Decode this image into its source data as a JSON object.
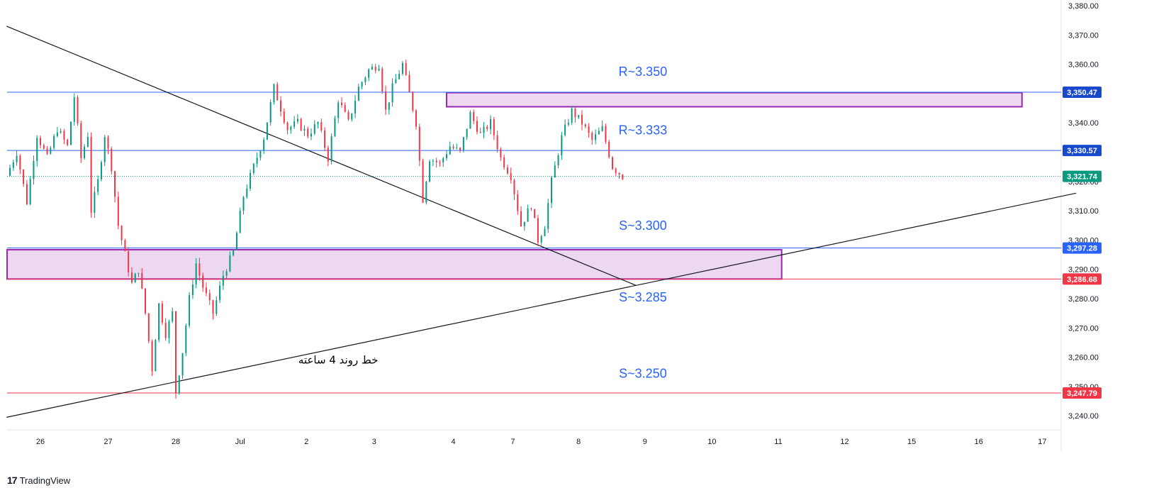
{
  "chart_data": {
    "type": "candlestick",
    "instrument_price_last": "3,321.74",
    "y_axis": {
      "ticks": [
        "3,380.00",
        "3,370.00",
        "3,360.00",
        "3,350.00",
        "3,340.00",
        "3,330.00",
        "3,320.00",
        "3,310.00",
        "3,300.00",
        "3,290.00",
        "3,280.00",
        "3,270.00",
        "3,260.00",
        "3,250.00",
        "3,240.00"
      ],
      "tick_values": [
        3380,
        3370,
        3360,
        3350,
        3340,
        3330,
        3320,
        3310,
        3300,
        3290,
        3280,
        3270,
        3260,
        3250,
        3240
      ],
      "range": [
        3236,
        3381
      ]
    },
    "x_axis": {
      "labels": [
        "26",
        "27",
        "28",
        "Jul",
        "2",
        "3",
        "4",
        "7",
        "8",
        "9",
        "10",
        "11",
        "12",
        "15",
        "16",
        "17"
      ],
      "label_day_index": [
        0,
        1,
        2,
        3,
        4,
        5,
        6,
        7,
        8,
        9,
        10,
        11,
        12,
        13,
        14,
        15
      ]
    },
    "price_lines": [
      {
        "label": "3,350.47",
        "value": 3350.47,
        "color": "#2962ff",
        "tag_color": "#1848cc"
      },
      {
        "label": "3,330.57",
        "value": 3330.57,
        "color": "#2962ff",
        "tag_color": "#1848cc"
      },
      {
        "label": "3,321.74",
        "value": 3321.74,
        "color": "#089981",
        "tag_color": "#089981",
        "dotted": true
      },
      {
        "label": "3,297.28",
        "value": 3297.28,
        "color": "#2962ff",
        "tag_color": "#2962ff"
      },
      {
        "label": "3,286.68",
        "value": 3286.68,
        "color": "#f23645",
        "tag_color": "#f23645"
      },
      {
        "label": "3,247.79",
        "value": 3247.79,
        "color": "#f23645",
        "tag_color": "#f23645"
      }
    ],
    "zones": [
      {
        "from_day": 6.0,
        "to_day": 14.5,
        "low": 3345.5,
        "high": 3350.3,
        "fill": "#e1bee7",
        "stroke": "#9c27b0"
      },
      {
        "from_day": -0.5,
        "to_day": 10.95,
        "low": 3286.7,
        "high": 3296.7,
        "fill": "#e1bee7",
        "stroke": "#9c27b0"
      }
    ],
    "annotations": [
      {
        "text": "R~3.350",
        "day": 8.9,
        "value": 3357.5
      },
      {
        "text": "R~3.333",
        "day": 8.9,
        "value": 3337.5
      },
      {
        "text": "S~3.300",
        "day": 8.9,
        "value": 3305
      },
      {
        "text": "S~3.285",
        "day": 8.9,
        "value": 3280.5
      },
      {
        "text": "S~3.250",
        "day": 8.9,
        "value": 3254.5
      }
    ],
    "arabic_annotation": {
      "text": "خط روند 4 ساعته",
      "day": 4.4,
      "value": 3259
    },
    "trend_lines": [
      {
        "from": [
          -0.5,
          3373
        ],
        "to": [
          8.8,
          3284.5
        ]
      },
      {
        "from": [
          -0.5,
          3239.5
        ],
        "to": [
          15.3,
          3316
        ]
      }
    ],
    "candles_path": [
      [
        -0.5,
        3322
      ],
      [
        -0.35,
        3330
      ],
      [
        -0.2,
        3313
      ],
      [
        -0.05,
        3336
      ],
      [
        0.1,
        3328
      ],
      [
        0.25,
        3338
      ],
      [
        0.4,
        3332
      ],
      [
        0.5,
        3349
      ],
      [
        0.6,
        3328
      ],
      [
        0.7,
        3336
      ],
      [
        0.75,
        3310
      ],
      [
        0.85,
        3320
      ],
      [
        0.95,
        3336
      ],
      [
        1.05,
        3325
      ],
      [
        1.15,
        3305
      ],
      [
        1.25,
        3295
      ],
      [
        1.35,
        3285
      ],
      [
        1.45,
        3290
      ],
      [
        1.55,
        3275
      ],
      [
        1.65,
        3256
      ],
      [
        1.75,
        3278
      ],
      [
        1.85,
        3268
      ],
      [
        1.95,
        3275
      ],
      [
        2.0,
        3248
      ],
      [
        2.1,
        3262
      ],
      [
        2.2,
        3280
      ],
      [
        2.3,
        3292
      ],
      [
        2.4,
        3284
      ],
      [
        2.55,
        3275
      ],
      [
        2.7,
        3288
      ],
      [
        2.85,
        3296
      ],
      [
        3.0,
        3315
      ],
      [
        3.15,
        3325
      ],
      [
        3.3,
        3335
      ],
      [
        3.45,
        3352
      ],
      [
        3.55,
        3345
      ],
      [
        3.65,
        3338
      ],
      [
        3.8,
        3340
      ],
      [
        3.95,
        3336
      ],
      [
        4.1,
        3340
      ],
      [
        4.25,
        3328
      ],
      [
        4.4,
        3348
      ],
      [
        4.55,
        3340
      ],
      [
        4.7,
        3352
      ],
      [
        4.85,
        3358
      ],
      [
        5.0,
        3360
      ],
      [
        5.1,
        3344
      ],
      [
        5.2,
        3352
      ],
      [
        5.35,
        3360
      ],
      [
        5.45,
        3350
      ],
      [
        5.55,
        3340
      ],
      [
        5.65,
        3314
      ],
      [
        5.75,
        3328
      ],
      [
        5.9,
        3326
      ],
      [
        6.05,
        3332
      ],
      [
        6.2,
        3330
      ],
      [
        6.35,
        3343
      ],
      [
        6.5,
        3336
      ],
      [
        6.65,
        3340
      ],
      [
        6.8,
        3328
      ],
      [
        6.95,
        3322
      ],
      [
        7.1,
        3305
      ],
      [
        7.25,
        3312
      ],
      [
        7.35,
        3300
      ],
      [
        7.45,
        3305
      ],
      [
        7.55,
        3320
      ],
      [
        7.7,
        3335
      ],
      [
        7.85,
        3344
      ],
      [
        8.0,
        3340
      ],
      [
        8.15,
        3334
      ],
      [
        8.3,
        3338
      ],
      [
        8.45,
        3325
      ],
      [
        8.6,
        3321.74
      ]
    ]
  },
  "branding": {
    "logo_mark": "17",
    "logo_text": "TradingView"
  }
}
